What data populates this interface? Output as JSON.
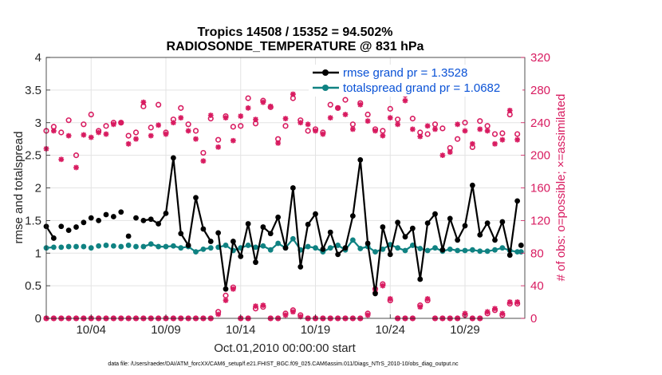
{
  "chart_data": {
    "type": "line",
    "title": "Tropics 14508 / 15352 = 94.502%",
    "subtitle": "RADIOSONDE_TEMPERATURE @ 831 hPa",
    "xlabel": "Oct.01,2010 00:00:00 start",
    "ylabel": "rmse and totalspread",
    "ylabel_right": "# of obs: o=possible; ×=assimilated",
    "footnote": "data file: /Users/raeder/DAI/ATM_forcXX/CAM6_setup/f.e21.FHIST_BGC.f09_025.CAM6assim.011/Diags_NTrS_2010-10/obs_diag_output.nc",
    "xlim": [
      1,
      33
    ],
    "ylim": [
      0,
      4
    ],
    "ylim_right": [
      0,
      320
    ],
    "x_ticks": [
      4,
      9,
      14,
      19,
      24,
      29
    ],
    "x_tick_labels": [
      "10/04",
      "10/09",
      "10/14",
      "10/19",
      "10/24",
      "10/29"
    ],
    "y_ticks": [
      0,
      0.5,
      1,
      1.5,
      2,
      2.5,
      3,
      3.5,
      4
    ],
    "y_tick_labels": [
      "0",
      "0.5",
      "1",
      "1.5",
      "2",
      "2.5",
      "3",
      "3.5",
      "4"
    ],
    "y_ticks_right": [
      0,
      40,
      80,
      120,
      160,
      200,
      240,
      280,
      320
    ],
    "y_tick_labels_right": [
      "0",
      "40",
      "80",
      "120",
      "160",
      "200",
      "240",
      "280",
      "320"
    ],
    "grid": true,
    "legend_position": "top-right",
    "colors": {
      "rmse": "#000000",
      "spread": "#0f8282",
      "obs": "#d81b60",
      "legend_text": "#0a52d6",
      "axis": "#262626"
    },
    "series": [
      {
        "name": "rmse grand pr = 1.3528",
        "key": "rmse",
        "segments": [
          {
            "x": [
              1,
              1.5
            ],
            "y": [
              1.41,
              1.23
            ]
          },
          {
            "x": [
              2
            ],
            "y": [
              1.41
            ]
          },
          {
            "x": [
              2.5
            ],
            "y": [
              1.35
            ]
          },
          {
            "x": [
              3
            ],
            "y": [
              1.4
            ]
          },
          {
            "x": [
              3.5
            ],
            "y": [
              1.47
            ]
          },
          {
            "x": [
              4
            ],
            "y": [
              1.54
            ]
          },
          {
            "x": [
              4.5
            ],
            "y": [
              1.5
            ]
          },
          {
            "x": [
              5
            ],
            "y": [
              1.59
            ]
          },
          {
            "x": [
              5.5
            ],
            "y": [
              1.56
            ]
          },
          {
            "x": [
              6
            ],
            "y": [
              1.63
            ]
          },
          {
            "x": [
              6.5
            ],
            "y": [
              1.26
            ]
          },
          {
            "x": [
              7
            ],
            "y": [
              1.54
            ]
          },
          {
            "x": [
              7.5,
              8,
              8.5,
              9,
              9.5,
              10,
              10.5,
              11,
              11.5,
              12
            ],
            "y": [
              1.5,
              1.52,
              1.45,
              1.61,
              2.46,
              1.3,
              1.12,
              1.85,
              1.37,
              1.18
            ]
          },
          {
            "x": [
              12.5,
              13,
              13.5,
              14,
              14.5,
              15,
              15.5,
              16,
              16.5,
              17,
              17.5,
              18,
              18.5,
              19,
              19.5,
              20,
              20.5,
              21,
              21.5,
              22,
              22.5,
              23,
              23.5,
              24,
              24.5,
              25,
              25.5,
              26,
              26.5,
              27,
              27.5,
              28,
              28.5,
              29,
              29.5,
              30,
              30.5,
              31,
              31.5,
              32,
              32.5
            ],
            "y": [
              1.31,
              0.45,
              1.18,
              0.95,
              1.45,
              0.86,
              1.4,
              1.3,
              1.55,
              1.08,
              2.0,
              0.79,
              1.44,
              1.6,
              1.06,
              1.32,
              0.98,
              1.08,
              1.57,
              2.43,
              1.15,
              0.38,
              1.4,
              0.98,
              1.47,
              1.25,
              1.38,
              0.6,
              1.46,
              1.6,
              1.05,
              1.53,
              1.2,
              1.42,
              2.04,
              1.28,
              1.46,
              1.2,
              1.48,
              0.97,
              1.8
            ]
          },
          {
            "x": [
              32.75
            ],
            "y": [
              1.12
            ]
          }
        ]
      },
      {
        "name": "totalspread grand pr = 1.0682",
        "key": "spread",
        "segments": [
          {
            "x": [
              1,
              1.5
            ],
            "y": [
              1.08,
              1.09
            ]
          },
          {
            "x": [
              2
            ],
            "y": [
              1.09
            ]
          },
          {
            "x": [
              2.5
            ],
            "y": [
              1.1
            ]
          },
          {
            "x": [
              3
            ],
            "y": [
              1.1
            ]
          },
          {
            "x": [
              3.5
            ],
            "y": [
              1.1
            ]
          },
          {
            "x": [
              4
            ],
            "y": [
              1.08
            ]
          },
          {
            "x": [
              4.5
            ],
            "y": [
              1.11
            ]
          },
          {
            "x": [
              5
            ],
            "y": [
              1.12
            ]
          },
          {
            "x": [
              5.5
            ],
            "y": [
              1.11
            ]
          },
          {
            "x": [
              6
            ],
            "y": [
              1.1
            ]
          },
          {
            "x": [
              6.5
            ],
            "y": [
              1.12
            ]
          },
          {
            "x": [
              7
            ],
            "y": [
              1.1
            ]
          },
          {
            "x": [
              7.5,
              8,
              8.5,
              9,
              9.5,
              10,
              10.5,
              11,
              11.5,
              12
            ],
            "y": [
              1.1,
              1.14,
              1.1,
              1.1,
              1.11,
              1.08,
              1.1,
              1.02,
              1.06,
              1.08
            ]
          },
          {
            "x": [
              12.5,
              13,
              13.5,
              14,
              14.5,
              15,
              15.5,
              16,
              16.5,
              17,
              17.5,
              18,
              18.5,
              19,
              19.5,
              20,
              20.5,
              21,
              21.5,
              22,
              22.5,
              23,
              23.5,
              24,
              24.5,
              25,
              25.5,
              26,
              26.5,
              27,
              27.5,
              28,
              28.5,
              29,
              29.5,
              30,
              30.5,
              31,
              31.5,
              32,
              32.5
            ],
            "y": [
              1.09,
              1.12,
              1.04,
              1.08,
              1.12,
              1.09,
              1.11,
              1.05,
              1.15,
              1.08,
              1.22,
              1.05,
              1.1,
              1.08,
              1.02,
              1.08,
              1.12,
              1.05,
              1.2,
              1.07,
              1.1,
              1.02,
              1.06,
              1.13,
              1.08,
              1.04,
              1.12,
              1.07,
              1.04,
              1.08,
              1.03,
              1.06,
              1.04,
              1.04,
              1.05,
              1.03,
              1.03,
              1.05,
              1.08,
              1.04,
              1.02
            ]
          },
          {
            "x": [
              32.75
            ],
            "y": [
              1.02
            ]
          }
        ]
      },
      {
        "name": "# of obs possible",
        "key": "obs_possible",
        "axis": "right",
        "x": [
          1,
          1.5,
          2,
          2.5,
          3,
          3.5,
          4,
          4.5,
          5,
          5.5,
          6,
          6.5,
          7,
          7.5,
          8,
          8.5,
          9,
          9.5,
          10,
          10.5,
          11,
          11.5,
          12,
          12.5,
          13,
          13.5,
          14,
          14.5,
          15,
          15.5,
          16,
          16.5,
          17,
          17.5,
          18,
          18.5,
          19,
          19.5,
          20,
          20.5,
          21,
          21.5,
          22,
          22.5,
          23,
          23.5,
          24,
          24.5,
          25,
          25.5,
          26,
          26.5,
          27,
          27.5,
          28,
          28.5,
          29,
          29.5,
          30,
          30.5,
          31,
          31.5,
          32,
          32.5
        ],
        "y": [
          230,
          235,
          228,
          243,
          200,
          238,
          250,
          230,
          236,
          240,
          240,
          224,
          228,
          260,
          234,
          262,
          228,
          244,
          258,
          238,
          230,
          203,
          245,
          219,
          248,
          235,
          236,
          270,
          239,
          267,
          259,
          220,
          236,
          270,
          243,
          230,
          232,
          228,
          262,
          258,
          268,
          238,
          264,
          250,
          232,
          230,
          257,
          244,
          274,
          245,
          228,
          226,
          238,
          233,
          209,
          220,
          240,
          210,
          242,
          236,
          226,
          227,
          250,
          226
        ]
      },
      {
        "name": "# of obs assimilated",
        "key": "obs_assimilated",
        "axis": "right",
        "x": [
          1,
          1.5,
          2,
          2.5,
          3,
          3.5,
          4,
          4.5,
          5,
          5.5,
          6,
          6.5,
          7,
          7.5,
          8,
          8.5,
          9,
          9.5,
          10,
          10.5,
          11,
          11.5,
          12,
          12.5,
          13,
          13.5,
          14,
          14.5,
          15,
          15.5,
          16,
          16.5,
          17,
          17.5,
          18,
          18.5,
          19,
          19.5,
          20,
          20.5,
          21,
          21.5,
          22,
          22.5,
          23,
          23.5,
          24,
          24.5,
          25,
          25.5,
          26,
          26.5,
          27,
          27.5,
          28,
          28.5,
          29,
          29.5,
          30,
          30.5,
          31,
          31.5,
          32,
          32.5
        ],
        "y": [
          208,
          230,
          195,
          224,
          185,
          225,
          222,
          228,
          226,
          238,
          240,
          214,
          220,
          265,
          224,
          237,
          226,
          240,
          246,
          230,
          220,
          193,
          249,
          210,
          246,
          218,
          248,
          258,
          244,
          265,
          260,
          215,
          245,
          275,
          240,
          238,
          230,
          226,
          246,
          258,
          250,
          232,
          262,
          242,
          230,
          224,
          246,
          238,
          267,
          232,
          223,
          236,
          232,
          200,
          204,
          238,
          230,
          214,
          232,
          230,
          214,
          219,
          255,
          219
        ]
      }
    ],
    "obs_bottom": {
      "x": [
        1,
        1.5,
        2,
        2.5,
        3,
        3.5,
        4,
        4.5,
        5,
        5.5,
        6,
        6.5,
        7,
        7.5,
        8,
        8.5,
        9,
        9.5,
        10,
        10.5,
        11,
        11.5,
        12,
        12.5,
        13,
        13.5,
        14,
        14.5,
        15,
        15.5,
        16,
        16.5,
        17,
        17.5,
        18,
        18.5,
        19,
        19.5,
        20,
        20.5,
        21,
        21.5,
        22,
        22.5,
        23,
        23.5,
        24,
        24.5,
        25,
        25.5,
        26,
        26.5,
        27,
        27.5,
        28,
        28.5,
        29,
        29.5,
        30,
        30.5,
        31,
        31.5,
        32,
        32.5
      ],
      "possible": [
        0,
        0,
        0,
        0,
        0,
        0,
        0,
        0,
        0,
        0,
        0,
        0,
        0,
        0,
        0,
        0,
        0,
        0,
        0,
        0,
        0,
        0,
        0,
        8,
        28,
        38,
        0,
        0,
        12,
        14,
        0,
        0,
        6,
        10,
        4,
        0,
        0,
        0,
        0,
        0,
        0,
        0,
        0,
        6,
        36,
        42,
        22,
        0,
        0,
        0,
        16,
        22,
        0,
        0,
        0,
        0,
        4,
        0,
        0,
        6,
        10,
        4,
        18,
        18
      ],
      "assimilated": [
        0,
        0,
        0,
        0,
        0,
        0,
        0,
        0,
        0,
        0,
        0,
        0,
        0,
        0,
        0,
        0,
        0,
        0,
        0,
        0,
        0,
        0,
        0,
        5,
        22,
        36,
        0,
        0,
        15,
        16,
        0,
        0,
        4,
        8,
        2,
        0,
        0,
        0,
        0,
        0,
        0,
        0,
        0,
        4,
        32,
        40,
        24,
        0,
        0,
        0,
        14,
        24,
        0,
        0,
        0,
        0,
        6,
        0,
        0,
        8,
        12,
        6,
        20,
        20
      ]
    }
  }
}
